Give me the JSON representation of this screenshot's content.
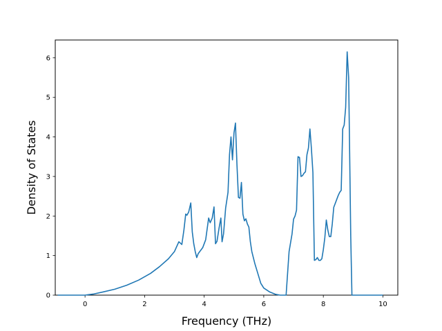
{
  "chart_data": {
    "type": "line",
    "title": "",
    "xlabel": "Frequency (THz)",
    "ylabel": "Density of States",
    "xlim": [
      -1.0,
      10.5
    ],
    "ylim": [
      0,
      6.45
    ],
    "xticks": [
      0,
      2,
      4,
      6,
      8,
      10
    ],
    "xtick_labels": [
      "0",
      "2",
      "4",
      "6",
      "8",
      "10"
    ],
    "yticks": [
      0,
      1,
      2,
      3,
      4,
      5,
      6
    ],
    "ytick_labels": [
      "0",
      "1",
      "2",
      "3",
      "4",
      "5",
      "6"
    ],
    "grid": false,
    "legend": "none",
    "line_color": "#1f77b4",
    "series": [
      {
        "x": [
          -0.92,
          -0.5,
          0.0,
          0.3,
          0.6,
          1.0,
          1.4,
          1.8,
          2.2,
          2.5,
          2.8,
          3.0,
          3.15,
          3.25,
          3.32,
          3.38,
          3.42,
          3.48,
          3.55,
          3.6,
          3.65,
          3.7,
          3.75,
          3.8,
          3.85,
          3.95,
          4.05,
          4.15,
          4.2,
          4.27,
          4.33,
          4.38,
          4.43,
          4.5,
          4.56,
          4.6,
          4.65,
          4.72,
          4.8,
          4.85,
          4.9,
          4.95,
          5.0,
          5.05,
          5.1,
          5.15,
          5.2,
          5.25,
          5.3,
          5.35,
          5.4,
          5.45,
          5.5,
          5.55,
          5.6,
          5.7,
          5.8,
          5.9,
          6.0,
          6.2,
          6.4,
          6.55,
          6.65,
          6.75,
          6.85,
          6.95,
          7.0,
          7.05,
          7.1,
          7.15,
          7.2,
          7.25,
          7.3,
          7.35,
          7.4,
          7.45,
          7.5,
          7.55,
          7.6,
          7.65,
          7.7,
          7.75,
          7.8,
          7.85,
          7.9,
          7.95,
          8.0,
          8.05,
          8.1,
          8.15,
          8.2,
          8.25,
          8.3,
          8.35,
          8.4,
          8.45,
          8.5,
          8.55,
          8.6,
          8.65,
          8.7,
          8.75,
          8.8,
          8.85,
          8.88,
          8.92,
          8.96,
          9.0,
          9.05,
          9.1,
          9.2,
          9.4,
          9.6,
          9.8,
          10.0
        ],
        "y": [
          0,
          0,
          0,
          0.03,
          0.08,
          0.15,
          0.25,
          0.38,
          0.55,
          0.72,
          0.92,
          1.1,
          1.35,
          1.28,
          1.65,
          2.05,
          2.02,
          2.1,
          2.33,
          1.6,
          1.3,
          1.1,
          0.95,
          1.05,
          1.1,
          1.2,
          1.4,
          1.95,
          1.83,
          1.95,
          2.23,
          1.3,
          1.36,
          1.7,
          1.95,
          1.35,
          1.55,
          2.2,
          2.6,
          3.55,
          4.0,
          3.42,
          4.1,
          4.35,
          3.3,
          2.47,
          2.45,
          2.85,
          2.05,
          1.88,
          1.93,
          1.8,
          1.72,
          1.35,
          1.1,
          0.8,
          0.55,
          0.3,
          0.18,
          0.08,
          0.02,
          0.0,
          0.0,
          0.0,
          1.1,
          1.55,
          1.92,
          2.0,
          2.15,
          3.5,
          3.48,
          3.0,
          3.02,
          3.08,
          3.12,
          3.55,
          3.72,
          4.2,
          3.7,
          3.1,
          0.88,
          0.9,
          0.95,
          0.88,
          0.88,
          0.92,
          1.15,
          1.45,
          1.9,
          1.65,
          1.48,
          1.48,
          1.8,
          2.22,
          2.32,
          2.42,
          2.52,
          2.6,
          2.65,
          4.2,
          4.3,
          4.75,
          6.15,
          5.5,
          3.8,
          1.5,
          0,
          0,
          0,
          0,
          0,
          0,
          0,
          0,
          0
        ]
      }
    ]
  }
}
